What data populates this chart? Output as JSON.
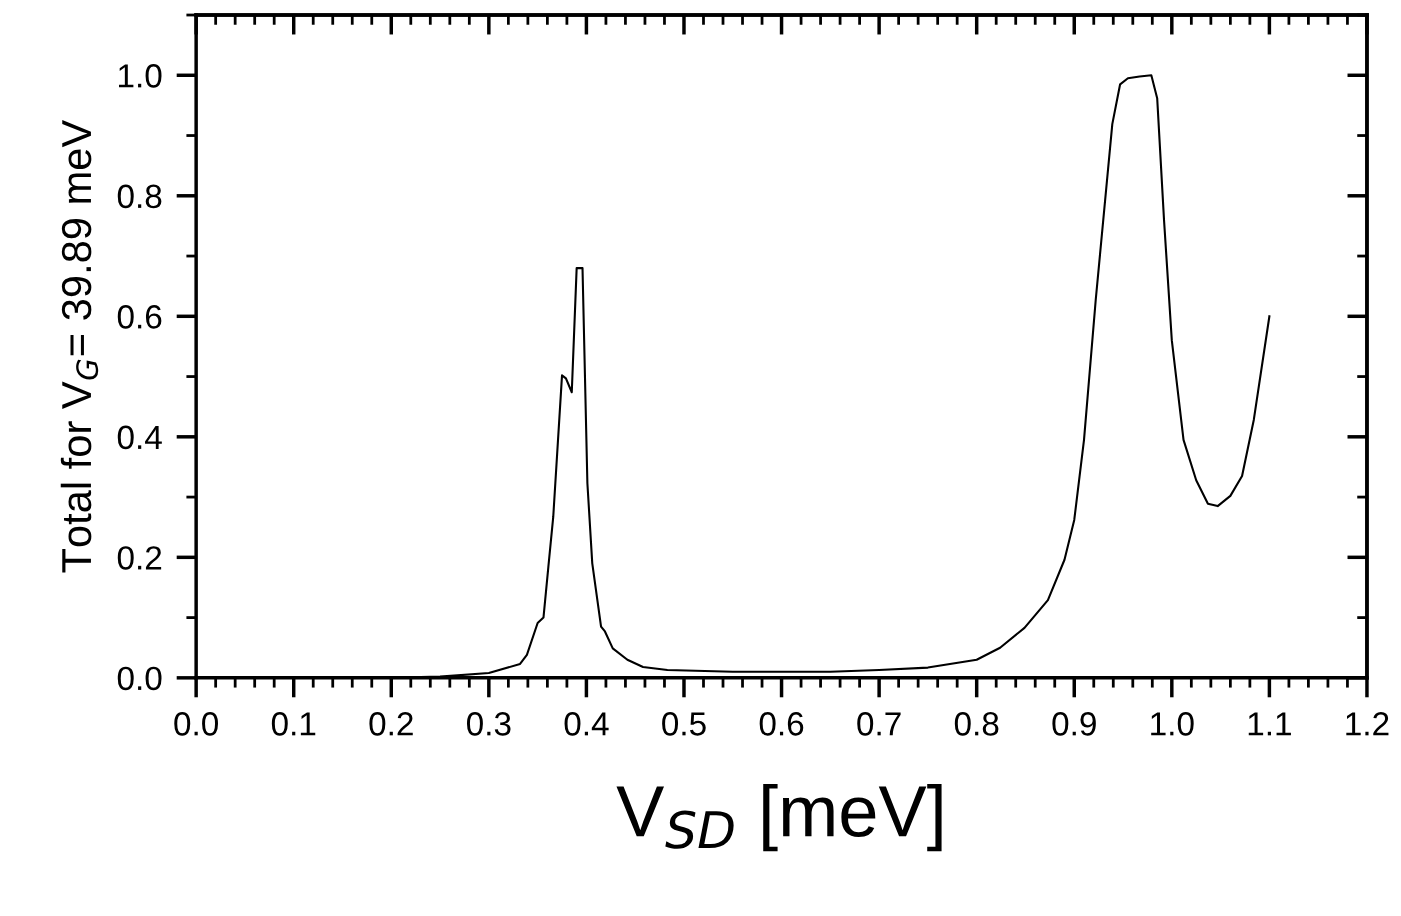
{
  "chart_data": {
    "type": "line",
    "xlabel": "V$_{SD}$ [meV]",
    "ylabel": "Total for V$_{G}$= 39.89 meV",
    "xlim": [
      0,
      1.2
    ],
    "xticks": [
      {
        "value": 0,
        "label": "0.0"
      },
      0.1,
      0.2,
      0.3,
      0.4,
      0.5,
      0.6,
      0.7,
      0.8,
      0.9,
      {
        "value": 1,
        "label": "1.0"
      },
      1.1,
      1.2
    ],
    "ylim": [
      0,
      1.1
    ],
    "yticks": [
      {
        "value": 0,
        "label": "0.0"
      },
      0.2,
      0.4,
      0.6,
      0.8,
      {
        "value": 1,
        "label": "1.0"
      }
    ],
    "grid": false,
    "legend": false,
    "marker": "none",
    "line_style": "solid",
    "series": [
      {
        "color": "#000000",
        "x": [
          0,
          0.1,
          0.2,
          0.25,
          0.3,
          0.332,
          0.339,
          0.35,
          0.356,
          0.361,
          0.366,
          0.375,
          0.379,
          0.385,
          0.39,
          0.396,
          0.401,
          0.406,
          0.415,
          0.419,
          0.427,
          0.442,
          0.458,
          0.483,
          0.55,
          0.6,
          0.65,
          0.7,
          0.75,
          0.8,
          0.824,
          0.849,
          0.873,
          0.89,
          0.9,
          0.91,
          0.922,
          0.939,
          0.947,
          0.955,
          0.967,
          0.979,
          0.985,
          0.992,
          1.0,
          1.012,
          1.025,
          1.037,
          1.047,
          1.06,
          1.072,
          1.084,
          1.1
        ],
        "values": [
          0,
          0,
          0,
          0.002,
          0.008,
          0.023,
          0.038,
          0.091,
          0.1,
          0.184,
          0.267,
          0.502,
          0.497,
          0.474,
          0.68,
          0.68,
          0.323,
          0.19,
          0.085,
          0.077,
          0.049,
          0.03,
          0.018,
          0.013,
          0.01,
          0.01,
          0.01,
          0.013,
          0.017,
          0.03,
          0.05,
          0.083,
          0.129,
          0.196,
          0.262,
          0.395,
          0.627,
          0.919,
          0.985,
          0.995,
          0.998,
          1.0,
          0.962,
          0.76,
          0.56,
          0.395,
          0.328,
          0.289,
          0.285,
          0.302,
          0.335,
          0.428,
          0.6
        ]
      }
    ]
  }
}
